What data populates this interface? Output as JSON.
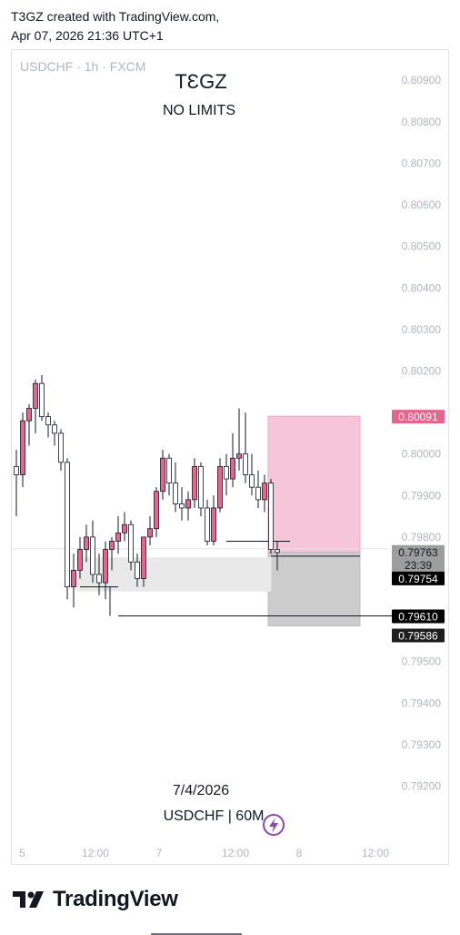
{
  "header": {
    "line1": "T3GZ created with TradingView.com,",
    "line2": "Apr 07, 2026 21:36 UTC+1"
  },
  "brand": {
    "name": "TradingView"
  },
  "chart_data": {
    "type": "candlestick",
    "symbol_label": "USDCHF · 1h · FXCM",
    "title": "TƐGZ",
    "subtitle": "NO LIMITS",
    "date_caption": "7/4/2026",
    "pair_caption": "USDCHF | 60M",
    "ylim": [
      0.7912,
      0.8094
    ],
    "y_ticks": [
      "0.80900",
      "0.80800",
      "0.80700",
      "0.80600",
      "0.80500",
      "0.80400",
      "0.80300",
      "0.80200",
      "0.80000",
      "0.79900",
      "0.79800",
      "0.79500",
      "0.79400",
      "0.79300",
      "0.79200"
    ],
    "x_ticks": [
      {
        "label": "5",
        "bar": 0
      },
      {
        "label": "12:00",
        "bar": 12
      },
      {
        "label": "7",
        "bar": 22
      },
      {
        "label": "12:00",
        "bar": 34
      },
      {
        "label": "8",
        "bar": 44
      },
      {
        "label": "12:00",
        "bar": 56
      }
    ],
    "candles": [
      [
        0.7997,
        0.8001,
        0.7985,
        0.7995
      ],
      [
        0.7995,
        0.801,
        0.7992,
        0.8008
      ],
      [
        0.8008,
        0.8012,
        0.8002,
        0.8011
      ],
      [
        0.8011,
        0.8018,
        0.8005,
        0.8017
      ],
      [
        0.8017,
        0.8019,
        0.8008,
        0.8009
      ],
      [
        0.8009,
        0.801,
        0.8004,
        0.8007
      ],
      [
        0.8007,
        0.8008,
        0.8002,
        0.8005
      ],
      [
        0.8005,
        0.8006,
        0.7996,
        0.7998
      ],
      [
        0.7998,
        0.7999,
        0.7965,
        0.7968
      ],
      [
        0.7968,
        0.7976,
        0.7963,
        0.7972
      ],
      [
        0.7972,
        0.798,
        0.797,
        0.7977
      ],
      [
        0.7977,
        0.7983,
        0.7974,
        0.798
      ],
      [
        0.798,
        0.7984,
        0.7969,
        0.7971
      ],
      [
        0.7971,
        0.7976,
        0.7966,
        0.7969
      ],
      [
        0.7969,
        0.7979,
        0.7965,
        0.7977
      ],
      [
        0.7977,
        0.798,
        0.7972,
        0.7979
      ],
      [
        0.7979,
        0.7985,
        0.7976,
        0.7981
      ],
      [
        0.7981,
        0.7986,
        0.7979,
        0.7983
      ],
      [
        0.7983,
        0.7984,
        0.7972,
        0.7974
      ],
      [
        0.7974,
        0.7976,
        0.7968,
        0.797
      ],
      [
        0.797,
        0.798,
        0.7968,
        0.798
      ],
      [
        0.798,
        0.7985,
        0.7978,
        0.7982
      ],
      [
        0.7982,
        0.7992,
        0.798,
        0.7991
      ],
      [
        0.7991,
        0.8001,
        0.7989,
        0.7999
      ],
      [
        0.7999,
        0.8,
        0.799,
        0.7993
      ],
      [
        0.7993,
        0.7998,
        0.7986,
        0.7988
      ],
      [
        0.7988,
        0.7992,
        0.7984,
        0.7987
      ],
      [
        0.7987,
        0.7991,
        0.7984,
        0.7989
      ],
      [
        0.7989,
        0.7999,
        0.7987,
        0.7997
      ],
      [
        0.7997,
        0.7998,
        0.7985,
        0.7987
      ],
      [
        0.7987,
        0.7989,
        0.7978,
        0.7979
      ],
      [
        0.7979,
        0.799,
        0.7978,
        0.7987
      ],
      [
        0.7987,
        0.7999,
        0.7986,
        0.7997
      ],
      [
        0.7997,
        0.8,
        0.799,
        0.7994
      ],
      [
        0.7994,
        0.8005,
        0.7992,
        0.7999
      ],
      [
        0.7999,
        0.8011,
        0.7996,
        0.8
      ],
      [
        0.8,
        0.801,
        0.7993,
        0.7995
      ],
      [
        0.7995,
        0.8,
        0.799,
        0.7992
      ],
      [
        0.7992,
        0.7996,
        0.7987,
        0.7989
      ],
      [
        0.7989,
        0.7995,
        0.7986,
        0.7993
      ],
      [
        0.7993,
        0.7994,
        0.7976,
        0.7977
      ],
      [
        0.7977,
        0.7979,
        0.7972,
        0.79763
      ]
    ],
    "zones": [
      {
        "name": "target-zone",
        "from_bar": 40,
        "to_bar": 54,
        "top": 0.80091,
        "bottom": 0.79763,
        "color": "#f7c5d8",
        "border": "#f5a3c3"
      },
      {
        "name": "stop-zone",
        "from_bar": 40,
        "to_bar": 54,
        "top": 0.79763,
        "bottom": 0.79586,
        "color": "#cccccc",
        "border": "#bdbdbd"
      },
      {
        "name": "demand-zone",
        "from_bar": 10,
        "to_bar": 40,
        "top": 0.7975,
        "bottom": 0.7967,
        "color": "#e9e9e9",
        "border": "#e9e9e9"
      }
    ],
    "levels": [
      {
        "name": "level-79610",
        "price": 0.7961,
        "from_bar": 16,
        "to_bar": 64
      },
      {
        "name": "level-79754",
        "price": 0.79754,
        "from_bar": 40,
        "to_bar": 54
      },
      {
        "name": "level-79680",
        "price": 0.7968,
        "from_bar": 10,
        "to_bar": 16
      },
      {
        "name": "level-79790",
        "price": 0.7979,
        "from_bar": 33,
        "to_bar": 43
      }
    ],
    "price_tags": [
      {
        "name": "tag-80091",
        "price": 0.80091,
        "label": "0.80091",
        "bg": "#e5658d",
        "fg": "#ffffff"
      },
      {
        "name": "tag-79763",
        "price": 0.79763,
        "label": "0.79763",
        "sub": "23:39",
        "bg": "#9e9e9e",
        "fg": "#131722"
      },
      {
        "name": "tag-79754",
        "price": 0.79754,
        "label": "0.79754",
        "bg": "#000000",
        "fg": "#ffffff"
      },
      {
        "name": "tag-79610",
        "price": 0.7961,
        "label": "0.79610",
        "bg": "#000000",
        "fg": "#ffffff"
      },
      {
        "name": "tag-79586",
        "price": 0.79586,
        "label": "0.79586",
        "bg": "#1e1e1e",
        "fg": "#ffffff"
      }
    ],
    "colors": {
      "up": "#e5658d",
      "down": "#ffffff",
      "outline": "#131722",
      "grid_text": "#b2b5be",
      "crosshair": "#e0e3eb"
    }
  }
}
